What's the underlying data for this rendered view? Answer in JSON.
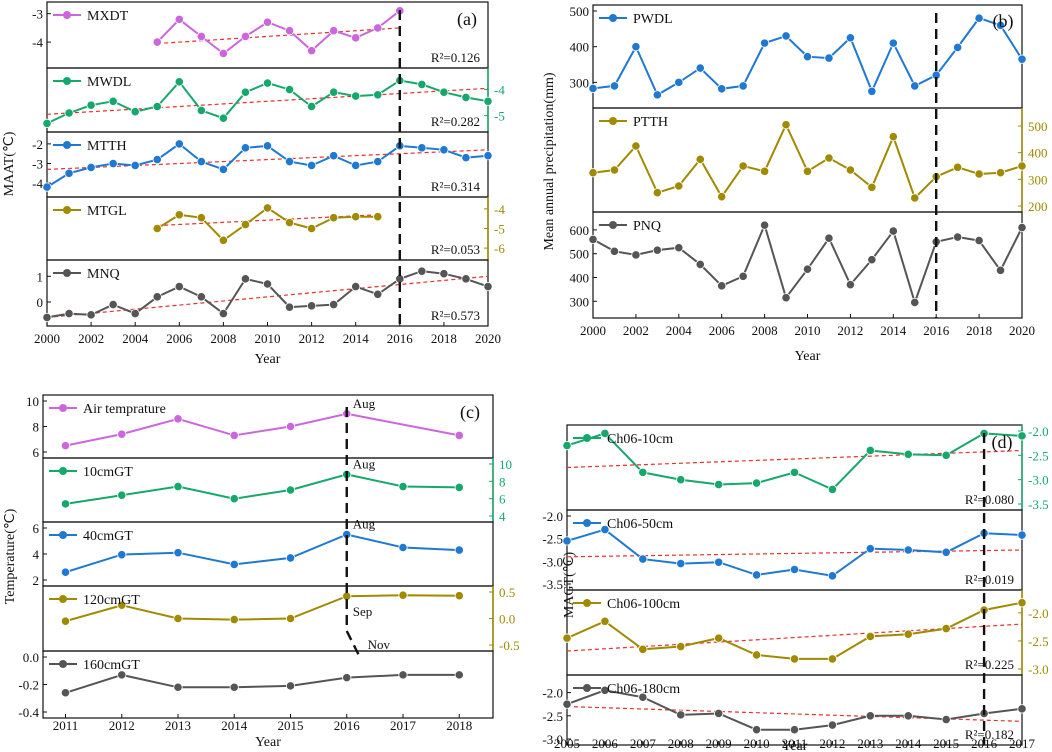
{
  "colors": {
    "purple": "#cc66dd",
    "green": "#16a86b",
    "blue": "#1f78d1",
    "olive": "#a08a00",
    "gray": "#555555",
    "trend": "#e8302e"
  },
  "chart_data": [
    {
      "id": "a",
      "type": "line",
      "panel_label": "(a)",
      "ylabel": "MAAT(℃)",
      "xlabel": "Year",
      "x_ticks": [
        "2000",
        "2002",
        "2004",
        "2006",
        "2008",
        "2010",
        "2012",
        "2014",
        "2016",
        "2018",
        "2020"
      ],
      "xlim": [
        2000,
        2020
      ],
      "event_marker": 2016,
      "series": [
        {
          "name": "MXDT",
          "color": "purple",
          "axis": "left",
          "ylim": [
            -4.7,
            -2.8
          ],
          "ticks": [
            "-3",
            "-4"
          ],
          "tick_values": [
            -3,
            -4
          ],
          "r2": "R²=0.126",
          "x": [
            2005,
            2006,
            2007,
            2008,
            2009,
            2010,
            2011,
            2012,
            2013,
            2014,
            2015,
            2016
          ],
          "y": [
            -4.0,
            -3.2,
            -3.8,
            -4.4,
            -3.8,
            -3.3,
            -3.6,
            -4.3,
            -3.6,
            -3.85,
            -3.5,
            -2.9
          ],
          "trend": [
            [
              2005,
              -4.05
            ],
            [
              2016,
              -3.5
            ]
          ]
        },
        {
          "name": "MWDL",
          "color": "green",
          "axis": "right",
          "ylim": [
            -5.4,
            -3.4
          ],
          "ticks": [
            "-4",
            "-5"
          ],
          "tick_values": [
            -4,
            -5
          ],
          "r2": "R²=0.282",
          "x": [
            2000,
            2001,
            2002,
            2003,
            2004,
            2005,
            2006,
            2007,
            2008,
            2009,
            2010,
            2011,
            2012,
            2013,
            2014,
            2015,
            2016,
            2017,
            2018,
            2019,
            2020
          ],
          "y": [
            -5.3,
            -4.9,
            -4.6,
            -4.45,
            -4.85,
            -4.65,
            -3.7,
            -4.8,
            -5.1,
            -4.1,
            -3.75,
            -4.0,
            -4.65,
            -4.1,
            -4.25,
            -4.2,
            -3.65,
            -3.8,
            -4.1,
            -4.3,
            -4.45
          ],
          "trend": [
            [
              2000,
              -4.95
            ],
            [
              2020,
              -3.95
            ]
          ]
        },
        {
          "name": "MTTH",
          "color": "blue",
          "axis": "left",
          "ylim": [
            -4.4,
            -1.7
          ],
          "ticks": [
            "-2",
            "-3",
            "-4"
          ],
          "tick_values": [
            -2,
            -3,
            -4
          ],
          "r2": "R²=0.314",
          "x": [
            2000,
            2001,
            2002,
            2003,
            2004,
            2005,
            2006,
            2007,
            2008,
            2009,
            2010,
            2011,
            2012,
            2013,
            2014,
            2015,
            2016,
            2017,
            2018,
            2019,
            2020
          ],
          "y": [
            -4.2,
            -3.5,
            -3.2,
            -3.0,
            -3.1,
            -2.8,
            -2.0,
            -2.9,
            -3.3,
            -2.2,
            -2.1,
            -2.9,
            -3.1,
            -2.6,
            -3.1,
            -2.9,
            -2.1,
            -2.2,
            -2.3,
            -2.7,
            -2.6
          ],
          "trend": [
            [
              2000,
              -3.3
            ],
            [
              2020,
              -2.3
            ]
          ]
        },
        {
          "name": "MTGL",
          "color": "olive",
          "axis": "right",
          "ylim": [
            -6.3,
            -3.7
          ],
          "ticks": [
            "-4",
            "-5",
            "-6"
          ],
          "tick_values": [
            -4,
            -5,
            -6
          ],
          "r2": "R²=0.053",
          "x": [
            2005,
            2006,
            2007,
            2008,
            2009,
            2010,
            2011,
            2012,
            2013,
            2014,
            2015
          ],
          "y": [
            -5.0,
            -4.3,
            -4.45,
            -5.6,
            -4.8,
            -3.95,
            -4.7,
            -5.0,
            -4.45,
            -4.4,
            -4.4
          ],
          "trend": [
            [
              2005,
              -4.85
            ],
            [
              2015,
              -4.3
            ]
          ]
        },
        {
          "name": "MNQ",
          "color": "gray",
          "axis": "left",
          "ylim": [
            -0.7,
            1.4
          ],
          "ticks": [
            "1",
            "0"
          ],
          "tick_values": [
            1,
            0
          ],
          "r2": "R²=0.573",
          "x": [
            2000,
            2001,
            2002,
            2003,
            2004,
            2005,
            2006,
            2007,
            2008,
            2009,
            2010,
            2011,
            2012,
            2013,
            2014,
            2015,
            2016,
            2017,
            2018,
            2019,
            2020
          ],
          "y": [
            -0.6,
            -0.45,
            -0.5,
            -0.1,
            -0.45,
            0.2,
            0.6,
            0.2,
            -0.45,
            0.9,
            0.7,
            -0.2,
            -0.15,
            -0.1,
            0.6,
            0.3,
            0.9,
            1.2,
            1.1,
            0.9,
            0.6
          ],
          "trend": [
            [
              2000,
              -0.6
            ],
            [
              2020,
              1.0
            ]
          ]
        }
      ]
    },
    {
      "id": "b",
      "type": "line",
      "panel_label": "(b)",
      "ylabel": "Mean annual precipitation(mm)",
      "xlabel": "Year",
      "x_ticks": [
        "2000",
        "2002",
        "2004",
        "2006",
        "2008",
        "2010",
        "2012",
        "2014",
        "2016",
        "2018",
        "2020"
      ],
      "xlim": [
        2000,
        2020
      ],
      "event_marker": 2016,
      "series": [
        {
          "name": "PWDL",
          "color": "blue",
          "axis": "left",
          "ylim": [
            245,
            500
          ],
          "ticks": [
            "500",
            "400",
            "300"
          ],
          "tick_values": [
            500,
            400,
            300
          ],
          "r2": "",
          "x": [
            2000,
            2001,
            2002,
            2003,
            2004,
            2005,
            2006,
            2007,
            2008,
            2009,
            2010,
            2011,
            2012,
            2013,
            2014,
            2015,
            2016,
            2017,
            2018,
            2019,
            2020
          ],
          "y": [
            283,
            290,
            400,
            265,
            300,
            340,
            282,
            290,
            410,
            430,
            372,
            368,
            425,
            275,
            410,
            290,
            320,
            398,
            480,
            460,
            365
          ],
          "trend": []
        },
        {
          "name": "PTTH",
          "color": "olive",
          "axis": "right",
          "ylim": [
            200,
            545
          ],
          "ticks": [
            "500",
            "400",
            "300",
            "200"
          ],
          "tick_values": [
            500,
            400,
            300,
            200
          ],
          "r2": "",
          "x": [
            2000,
            2001,
            2002,
            2003,
            2004,
            2005,
            2006,
            2007,
            2008,
            2009,
            2010,
            2011,
            2012,
            2013,
            2014,
            2015,
            2016,
            2017,
            2018,
            2019,
            2020
          ],
          "y": [
            325,
            335,
            425,
            250,
            275,
            375,
            235,
            350,
            330,
            505,
            330,
            380,
            335,
            270,
            460,
            230,
            310,
            345,
            320,
            325,
            350
          ],
          "trend": []
        },
        {
          "name": "PNQ",
          "color": "gray",
          "axis": "left",
          "ylim": [
            255,
            650
          ],
          "ticks": [
            "600",
            "500",
            "400",
            "300"
          ],
          "tick_values": [
            600,
            500,
            400,
            300
          ],
          "r2": "",
          "x": [
            2000,
            2001,
            2002,
            2003,
            2004,
            2005,
            2006,
            2007,
            2008,
            2009,
            2010,
            2011,
            2012,
            2013,
            2014,
            2015,
            2016,
            2017,
            2018,
            2019,
            2020
          ],
          "y": [
            560,
            510,
            495,
            515,
            525,
            455,
            365,
            405,
            620,
            315,
            435,
            565,
            370,
            475,
            595,
            295,
            550,
            570,
            555,
            430,
            610
          ],
          "trend": []
        }
      ]
    },
    {
      "id": "c",
      "type": "line",
      "panel_label": "(c)",
      "ylabel": "Temperature(℃)",
      "xlabel": "Year",
      "x_ticks": [
        "2011",
        "2012",
        "2013",
        "2014",
        "2015",
        "2016",
        "2017",
        "2018"
      ],
      "xlim": [
        2010.6,
        2018.6
      ],
      "event_path": [
        [
          2016,
          "Aug"
        ],
        [
          2016,
          "Aug"
        ],
        [
          2016,
          "Aug"
        ],
        [
          2016,
          "Sep"
        ],
        [
          2016.3,
          "Nov"
        ]
      ],
      "series": [
        {
          "name": "Air temprature",
          "color": "purple",
          "axis": "left",
          "ylim": [
            6,
            10
          ],
          "ticks": [
            "10",
            "8",
            "6"
          ],
          "tick_values": [
            10,
            8,
            6
          ],
          "month": "Aug",
          "x": [
            2011,
            2012,
            2013,
            2014,
            2015,
            2016,
            2018
          ],
          "y": [
            6.5,
            7.4,
            8.6,
            7.3,
            8.0,
            9.0,
            7.3
          ],
          "trend": []
        },
        {
          "name": "10cmGT",
          "color": "green",
          "axis": "right",
          "ylim": [
            4,
            10
          ],
          "ticks": [
            "10",
            "8",
            "6",
            "4"
          ],
          "tick_values": [
            10,
            8,
            6,
            4
          ],
          "month": "Aug",
          "x": [
            2011,
            2012,
            2013,
            2014,
            2015,
            2016,
            2017,
            2018
          ],
          "y": [
            5.4,
            6.4,
            7.4,
            6.0,
            7.0,
            8.8,
            7.4,
            7.3
          ],
          "trend": []
        },
        {
          "name": "40cmGT",
          "color": "blue",
          "axis": "left",
          "ylim": [
            2,
            6
          ],
          "ticks": [
            "6",
            "4",
            "2"
          ],
          "tick_values": [
            6,
            4,
            2
          ],
          "month": "Aug",
          "x": [
            2011,
            2012,
            2013,
            2014,
            2015,
            2016,
            2017,
            2018
          ],
          "y": [
            2.6,
            3.95,
            4.1,
            3.2,
            3.7,
            5.5,
            4.5,
            4.3
          ],
          "trend": []
        },
        {
          "name": "120cmGT",
          "color": "olive",
          "axis": "right",
          "ylim": [
            -0.5,
            0.5
          ],
          "ticks": [
            "0.5",
            "0.0",
            "-0.5"
          ],
          "tick_values": [
            0.5,
            0,
            -0.5
          ],
          "month": "Sep",
          "x": [
            2011,
            2012,
            2013,
            2014,
            2015,
            2016,
            2017,
            2018
          ],
          "y": [
            -0.05,
            0.25,
            0.0,
            -0.02,
            0.0,
            0.42,
            0.44,
            0.43
          ],
          "trend": []
        },
        {
          "name": "160cmGT",
          "color": "gray",
          "axis": "left",
          "ylim": [
            -0.4,
            0.0
          ],
          "ticks": [
            "0.0",
            "-0.2",
            "-0.4"
          ],
          "tick_values": [
            0,
            -0.2,
            -0.4
          ],
          "month": "Nov",
          "x": [
            2011,
            2012,
            2013,
            2014,
            2015,
            2016,
            2017,
            2018
          ],
          "y": [
            -0.26,
            -0.13,
            -0.22,
            -0.22,
            -0.21,
            -0.15,
            -0.13,
            -0.13
          ],
          "trend": []
        }
      ]
    },
    {
      "id": "d",
      "type": "line",
      "panel_label": "(d)",
      "ylabel": "MAGT(℃)",
      "xlabel": "Year",
      "x_ticks": [
        "2005",
        "2006",
        "2007",
        "2008",
        "2009",
        "2010",
        "2011",
        "2012",
        "2013",
        "2014",
        "2015",
        "2016",
        "2017"
      ],
      "xlim": [
        2005,
        2017
      ],
      "event_marker": 2016,
      "series": [
        {
          "name": "Ch06-10cm",
          "color": "green",
          "axis": "right",
          "ylim": [
            -3.5,
            -2.0
          ],
          "ticks": [
            "-2.0",
            "-2.5",
            "-3.0",
            "-3.5"
          ],
          "tick_values": [
            -2,
            -2.5,
            -3,
            -3.5
          ],
          "r2": "R²=0.080",
          "x": [
            2005,
            2006,
            2007,
            2008,
            2009,
            2010,
            2011,
            2012,
            2013,
            2014,
            2015,
            2016,
            2017
          ],
          "y": [
            -2.3,
            -2.05,
            -2.85,
            -3.0,
            -3.1,
            -3.07,
            -2.85,
            -3.2,
            -2.4,
            -2.48,
            -2.5,
            -2.05,
            -2.1
          ],
          "trend": [
            [
              2005,
              -2.75
            ],
            [
              2017,
              -2.4
            ]
          ]
        },
        {
          "name": "Ch06-50cm",
          "color": "blue",
          "axis": "left",
          "ylim": [
            -3.5,
            -2.0
          ],
          "ticks": [
            "-2.0",
            "-2.5",
            "-3.0",
            "-3.5"
          ],
          "tick_values": [
            -2,
            -2.5,
            -3,
            -3.5
          ],
          "r2": "R²=0.019",
          "x": [
            2005,
            2006,
            2007,
            2008,
            2009,
            2010,
            2011,
            2012,
            2013,
            2014,
            2015,
            2016,
            2017
          ],
          "y": [
            -2.55,
            -2.3,
            -2.95,
            -3.05,
            -3.02,
            -3.3,
            -3.18,
            -3.32,
            -2.72,
            -2.75,
            -2.8,
            -2.38,
            -2.42
          ],
          "trend": [
            [
              2005,
              -2.9
            ],
            [
              2017,
              -2.75
            ]
          ]
        },
        {
          "name": "Ch06-100cm",
          "color": "olive",
          "axis": "right",
          "ylim": [
            -3.0,
            -1.7
          ],
          "ticks": [
            "-2.0",
            "-2.5",
            "-3.0"
          ],
          "tick_values": [
            -2,
            -2.5,
            -3
          ],
          "r2": "R²=0.225",
          "x": [
            2005,
            2006,
            2007,
            2008,
            2009,
            2010,
            2011,
            2012,
            2013,
            2014,
            2015,
            2016,
            2017
          ],
          "y": [
            -2.45,
            -2.15,
            -2.65,
            -2.6,
            -2.45,
            -2.75,
            -2.82,
            -2.82,
            -2.42,
            -2.38,
            -2.28,
            -1.95,
            -1.82
          ],
          "trend": [
            [
              2005,
              -2.68
            ],
            [
              2017,
              -2.2
            ]
          ]
        },
        {
          "name": "Ch06-180cm",
          "color": "gray",
          "axis": "left",
          "ylim": [
            -3.0,
            -1.75
          ],
          "ticks": [
            "-2.0",
            "-2.5",
            "-3.0"
          ],
          "tick_values": [
            -2,
            -2.5,
            -3
          ],
          "r2": "R²=0.182",
          "x": [
            2005,
            2006,
            2007,
            2008,
            2009,
            2010,
            2011,
            2012,
            2013,
            2014,
            2015,
            2016,
            2017
          ],
          "y": [
            -2.25,
            -1.95,
            -2.1,
            -2.48,
            -2.45,
            -2.8,
            -2.8,
            -2.7,
            -2.5,
            -2.5,
            -2.58,
            -2.45,
            -2.35
          ],
          "trend": [
            [
              2005,
              -2.3
            ],
            [
              2017,
              -2.62
            ]
          ]
        }
      ]
    }
  ]
}
